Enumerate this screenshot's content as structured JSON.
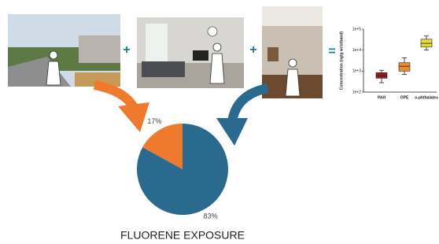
{
  "chart_data": [
    {
      "type": "pie",
      "title": "FLUORENE EXPOSURE",
      "values": [
        83,
        17
      ],
      "value_labels": [
        "83%",
        "17%"
      ],
      "colors": [
        "#2b6a8f",
        "#ef7a2e"
      ]
    },
    {
      "type": "box",
      "y_label": "Concentration (ng/g wristband)",
      "categories": [
        "PAH",
        "OPE",
        "o-phthalates"
      ],
      "min": [
        280,
        700,
        10000
      ],
      "q1": [
        460,
        1000,
        14000
      ],
      "median": [
        600,
        1700,
        21000
      ],
      "q3": [
        840,
        2500,
        33000
      ],
      "max": [
        1100,
        4300,
        47000
      ],
      "colors": [
        "#9b1c1c",
        "#f08a2c",
        "#e6d93a"
      ],
      "log_scale": true,
      "ylim": [
        100,
        100000
      ],
      "yticks": [
        {
          "value": 100,
          "label": "1e+2"
        },
        {
          "value": 1000,
          "label": "1e+3"
        },
        {
          "value": 10000,
          "label": "1e+4"
        },
        {
          "value": 100000,
          "label": "1e+5"
        }
      ]
    }
  ]
}
